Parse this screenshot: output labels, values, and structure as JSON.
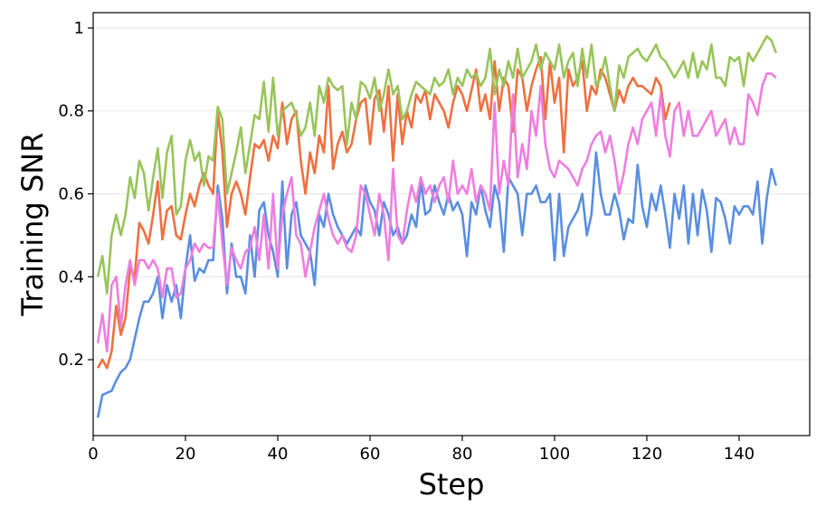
{
  "chart_data": {
    "type": "line",
    "xlabel": "Step",
    "ylabel": "Training SNR",
    "xlim": [
      0,
      155.3
    ],
    "ylim": [
      0.017,
      1.037
    ],
    "xticks": [
      0,
      20,
      40,
      60,
      80,
      100,
      120,
      140
    ],
    "yticks": [
      0.2,
      0.4,
      0.6,
      0.8,
      1.0
    ],
    "grid": true,
    "x": [
      1,
      2,
      3,
      4,
      5,
      6,
      7,
      8,
      9,
      10,
      11,
      12,
      13,
      14,
      15,
      16,
      17,
      18,
      19,
      20,
      21,
      22,
      23,
      24,
      25,
      26,
      27,
      28,
      29,
      30,
      31,
      32,
      33,
      34,
      35,
      36,
      37,
      38,
      39,
      40,
      41,
      42,
      43,
      44,
      45,
      46,
      47,
      48,
      49,
      50,
      51,
      52,
      53,
      54,
      55,
      56,
      57,
      58,
      59,
      60,
      61,
      62,
      63,
      64,
      65,
      66,
      67,
      68,
      69,
      70,
      71,
      72,
      73,
      74,
      75,
      76,
      77,
      78,
      79,
      80,
      81,
      82,
      83,
      84,
      85,
      86,
      87,
      88,
      89,
      90,
      91,
      92,
      93,
      94,
      95,
      96,
      97,
      98,
      99,
      100,
      101,
      102,
      103,
      104,
      105,
      106,
      107,
      108,
      109,
      110,
      111,
      112,
      113,
      114,
      115,
      116,
      117,
      118,
      119,
      120,
      121,
      122,
      123,
      124,
      125,
      126,
      127,
      128,
      129,
      130,
      131,
      132,
      133,
      134,
      135,
      136,
      137,
      138,
      139,
      140,
      141,
      142,
      143,
      144,
      145,
      146,
      147,
      148
    ],
    "series": [
      {
        "color": "#5a8ee0",
        "values": [
          0.06,
          0.115,
          0.12,
          0.125,
          0.15,
          0.17,
          0.18,
          0.2,
          0.25,
          0.3,
          0.34,
          0.34,
          0.36,
          0.4,
          0.3,
          0.38,
          0.34,
          0.38,
          0.3,
          0.42,
          0.5,
          0.39,
          0.42,
          0.41,
          0.44,
          0.44,
          0.62,
          0.54,
          0.36,
          0.48,
          0.4,
          0.4,
          0.36,
          0.5,
          0.4,
          0.56,
          0.58,
          0.5,
          0.46,
          0.4,
          0.63,
          0.42,
          0.55,
          0.58,
          0.5,
          0.48,
          0.46,
          0.38,
          0.55,
          0.52,
          0.6,
          0.55,
          0.52,
          0.5,
          0.48,
          0.5,
          0.52,
          0.5,
          0.62,
          0.58,
          0.56,
          0.5,
          0.58,
          0.55,
          0.5,
          0.52,
          0.48,
          0.5,
          0.55,
          0.52,
          0.63,
          0.55,
          0.56,
          0.62,
          0.58,
          0.55,
          0.6,
          0.56,
          0.58,
          0.55,
          0.45,
          0.58,
          0.55,
          0.62,
          0.56,
          0.52,
          0.62,
          0.58,
          0.46,
          0.64,
          0.62,
          0.6,
          0.5,
          0.6,
          0.6,
          0.62,
          0.58,
          0.58,
          0.6,
          0.44,
          0.6,
          0.45,
          0.52,
          0.54,
          0.56,
          0.6,
          0.5,
          0.55,
          0.7,
          0.6,
          0.55,
          0.55,
          0.6,
          0.56,
          0.49,
          0.54,
          0.53,
          0.67,
          0.57,
          0.52,
          0.6,
          0.56,
          0.62,
          0.55,
          0.47,
          0.6,
          0.54,
          0.62,
          0.48,
          0.6,
          0.5,
          0.61,
          0.56,
          0.46,
          0.59,
          0.58,
          0.54,
          0.48,
          0.57,
          0.55,
          0.57,
          0.57,
          0.55,
          0.63,
          0.48,
          0.59,
          0.66,
          0.62
        ]
      },
      {
        "color": "#ee7040",
        "values": [
          0.18,
          0.2,
          0.18,
          0.22,
          0.33,
          0.26,
          0.3,
          0.42,
          0.4,
          0.53,
          0.51,
          0.48,
          0.55,
          0.63,
          0.49,
          0.56,
          0.57,
          0.5,
          0.49,
          0.55,
          0.6,
          0.57,
          0.62,
          0.65,
          0.62,
          0.6,
          0.8,
          0.7,
          0.52,
          0.6,
          0.63,
          0.6,
          0.55,
          0.64,
          0.72,
          0.71,
          0.73,
          0.68,
          0.74,
          0.71,
          0.82,
          0.72,
          0.78,
          0.8,
          0.68,
          0.6,
          0.7,
          0.65,
          0.74,
          0.7,
          0.86,
          0.66,
          0.72,
          0.75,
          0.7,
          0.72,
          0.78,
          0.82,
          0.83,
          0.72,
          0.83,
          0.85,
          0.75,
          0.86,
          0.68,
          0.84,
          0.72,
          0.8,
          0.76,
          0.84,
          0.82,
          0.85,
          0.78,
          0.84,
          0.82,
          0.8,
          0.76,
          0.82,
          0.86,
          0.84,
          0.8,
          0.85,
          0.9,
          0.8,
          0.84,
          0.78,
          0.92,
          0.8,
          0.88,
          0.86,
          0.75,
          0.9,
          0.88,
          0.8,
          0.86,
          0.9,
          0.93,
          0.78,
          0.92,
          0.82,
          0.88,
          0.7,
          0.9,
          0.86,
          0.88,
          0.92,
          0.8,
          0.86,
          0.84,
          0.9,
          0.88,
          0.84,
          0.8,
          0.85,
          0.82,
          0.86,
          0.88,
          0.86,
          0.86,
          0.85,
          0.84,
          0.88,
          0.86,
          0.78,
          0.82,
          null,
          null,
          null,
          null,
          null,
          null,
          null,
          null,
          null,
          null,
          null,
          null,
          null,
          null,
          null,
          null,
          null,
          null,
          null,
          null,
          null,
          null,
          null
        ]
      },
      {
        "color": "#ee7ee0",
        "values": [
          0.24,
          0.31,
          0.22,
          0.38,
          0.4,
          0.28,
          0.38,
          0.44,
          0.38,
          0.44,
          0.44,
          0.42,
          0.44,
          0.42,
          0.35,
          0.42,
          0.42,
          0.35,
          0.36,
          0.42,
          0.44,
          0.48,
          0.46,
          0.48,
          0.47,
          0.47,
          0.6,
          0.48,
          0.38,
          0.47,
          0.44,
          0.42,
          0.46,
          0.47,
          0.52,
          0.44,
          0.55,
          0.42,
          0.6,
          0.42,
          0.55,
          0.6,
          0.64,
          0.5,
          0.48,
          0.4,
          0.46,
          0.52,
          0.56,
          0.6,
          0.54,
          0.5,
          0.48,
          0.5,
          0.47,
          0.46,
          0.5,
          0.62,
          0.6,
          0.55,
          0.5,
          0.6,
          0.55,
          0.44,
          0.66,
          0.5,
          0.48,
          0.56,
          0.62,
          0.58,
          0.64,
          0.6,
          0.62,
          0.58,
          0.62,
          0.64,
          0.58,
          0.68,
          0.6,
          0.62,
          0.6,
          0.66,
          0.58,
          0.62,
          0.6,
          0.56,
          0.82,
          0.6,
          0.68,
          0.62,
          0.84,
          0.64,
          0.72,
          0.66,
          0.8,
          0.74,
          0.86,
          0.72,
          0.66,
          0.64,
          0.68,
          0.67,
          0.66,
          0.64,
          0.62,
          0.66,
          0.68,
          0.72,
          0.74,
          0.75,
          0.7,
          0.74,
          0.68,
          0.6,
          0.65,
          0.72,
          0.76,
          0.72,
          0.78,
          0.8,
          0.82,
          0.74,
          0.84,
          0.74,
          0.69,
          0.8,
          0.82,
          0.74,
          0.8,
          0.74,
          0.74,
          0.76,
          0.78,
          0.8,
          0.74,
          0.76,
          0.78,
          0.72,
          0.76,
          0.72,
          0.72,
          0.84,
          0.82,
          0.79,
          0.86,
          0.89,
          0.89,
          0.88
        ]
      },
      {
        "color": "#98c45a",
        "values": [
          0.4,
          0.45,
          0.36,
          0.5,
          0.55,
          0.5,
          0.55,
          0.64,
          0.59,
          0.68,
          0.65,
          0.56,
          0.64,
          0.71,
          0.59,
          0.7,
          0.74,
          0.55,
          0.57,
          0.68,
          0.73,
          0.68,
          0.7,
          0.62,
          0.69,
          0.68,
          0.81,
          0.78,
          0.6,
          0.65,
          0.7,
          0.76,
          0.65,
          0.72,
          0.79,
          0.78,
          0.87,
          0.75,
          0.88,
          0.74,
          0.8,
          0.81,
          0.82,
          0.79,
          0.74,
          0.76,
          0.82,
          0.74,
          0.86,
          0.82,
          0.88,
          0.86,
          0.85,
          0.86,
          0.72,
          0.82,
          0.78,
          0.87,
          0.86,
          0.83,
          0.88,
          0.8,
          0.84,
          0.9,
          0.84,
          0.86,
          0.78,
          0.8,
          0.84,
          0.87,
          0.86,
          0.85,
          0.84,
          0.88,
          0.86,
          0.87,
          0.9,
          0.84,
          0.88,
          0.86,
          0.9,
          0.88,
          0.89,
          0.86,
          0.88,
          0.95,
          0.84,
          0.9,
          0.86,
          0.92,
          0.88,
          0.95,
          0.88,
          0.9,
          0.92,
          0.96,
          0.9,
          0.94,
          0.92,
          0.9,
          0.96,
          0.88,
          0.92,
          0.94,
          0.86,
          0.95,
          0.88,
          0.96,
          0.86,
          0.88,
          0.93,
          0.86,
          0.8,
          0.91,
          0.88,
          0.93,
          0.94,
          0.95,
          0.93,
          0.92,
          0.94,
          0.96,
          0.93,
          0.92,
          0.9,
          0.88,
          0.9,
          0.92,
          0.88,
          0.94,
          0.88,
          0.92,
          0.9,
          0.96,
          0.88,
          0.88,
          0.86,
          0.93,
          0.92,
          0.93,
          0.86,
          0.94,
          0.92,
          0.94,
          0.96,
          0.98,
          0.97,
          0.94
        ]
      }
    ]
  }
}
